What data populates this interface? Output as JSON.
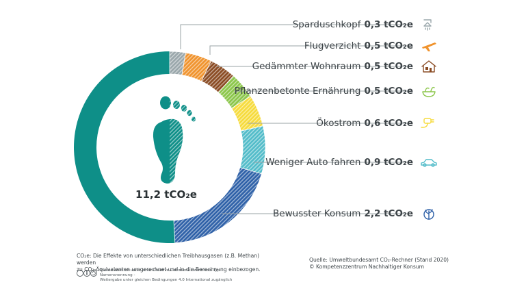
{
  "chart_data": {
    "type": "donut",
    "unit": "tCO₂e",
    "total_label": "11,2 tCO₂e",
    "segments": [
      {
        "name": "Sparduschkopf",
        "value_label": "0,3 tCO₂e",
        "value": 0.3,
        "color": "#9aa7ab",
        "icon": "shower-head-icon"
      },
      {
        "name": "Flugverzicht",
        "value_label": "0,5 tCO₂e",
        "value": 0.5,
        "color": "#f0932d",
        "icon": "airplane-icon"
      },
      {
        "name": "Gedämmter Wohnraum",
        "value_label": "0,5 tCO₂e",
        "value": 0.5,
        "color": "#8a4b23",
        "icon": "house-icon"
      },
      {
        "name": "Pflanzenbetonte Ernährung",
        "value_label": "0,5 tCO₂e",
        "value": 0.5,
        "color": "#8bc64a",
        "icon": "vegetable-bowl-icon"
      },
      {
        "name": "Ökostrom",
        "value_label": "0,6 tCO₂e",
        "value": 0.6,
        "color": "#f6db3c",
        "icon": "power-plug-icon"
      },
      {
        "name": "Weniger Auto fahren",
        "value_label": "0,9 tCO₂e",
        "value": 0.9,
        "color": "#52bcc9",
        "icon": "car-icon"
      },
      {
        "name": "Bewusster Konsum",
        "value_label": "2,2 tCO₂e",
        "value": 2.2,
        "color": "#2f61a8",
        "icon": "globe-plant-icon"
      }
    ],
    "remainder": {
      "value": 5.7,
      "color": "#0e8f88"
    }
  },
  "colors": {
    "teal": "#0e8f88",
    "footprint": "#0e8f88",
    "leader_line": "#9aa3a6",
    "icon_orange": "#f0932d",
    "icon_brown": "#8a4b23",
    "icon_green": "#8bc64a",
    "icon_yellow": "#f6db3c",
    "icon_cyan": "#52bcc9",
    "icon_blue": "#2f61a8",
    "icon_grey": "#9aa7ab"
  },
  "footnote": {
    "line1": "CO₂e: Die Effekte von unterschiedlichen Treibhausgasen (z.B. Methan) werden",
    "line2": "zu CO₂-Äquivalenten umgerechnet und in die Berechnung einbezogen."
  },
  "license": {
    "line1": "Dieses Werk ist unter einer Creative Commons Lizenz vom Typ Namensnennung -",
    "line2": "Weitergabe unter gleichen Bedingungen 4.0 International zugänglich"
  },
  "source": {
    "line1": "Quelle: Umweltbundesamt CO₂-Rechner (Stand 2020)",
    "line2": "© Kompetenzzentrum Nachhaltiger Konsum"
  }
}
